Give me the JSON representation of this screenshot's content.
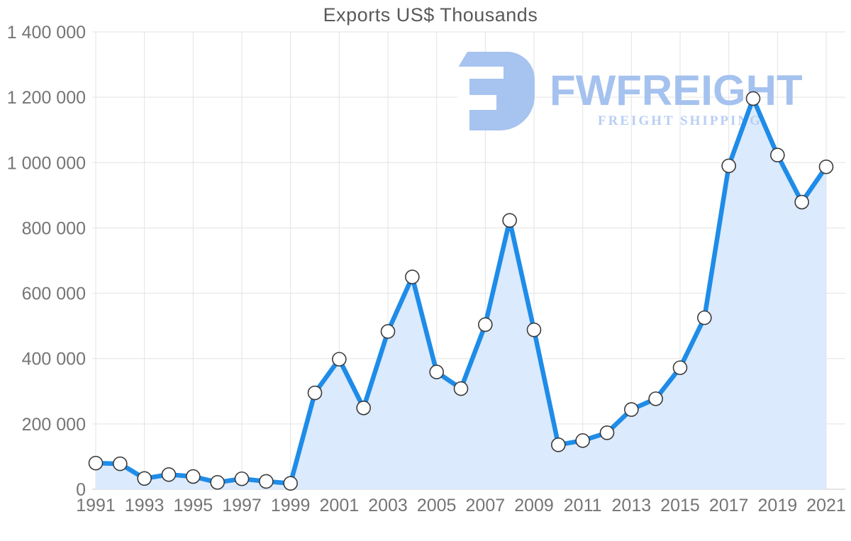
{
  "watermark": {
    "brand": "FWFREIGHT",
    "tagline": "FREIGHT SHIPPING",
    "logo_color": "#a7c3ef",
    "brand_color": "#a5c2ef",
    "tagline_color": "#b8cef4"
  },
  "chart_data": {
    "type": "area",
    "title": "Exports US$ Thousands",
    "xlabel": "",
    "ylabel": "",
    "x": [
      1991,
      1992,
      1993,
      1994,
      1995,
      1996,
      1997,
      1998,
      1999,
      2000,
      2001,
      2002,
      2003,
      2004,
      2005,
      2006,
      2007,
      2008,
      2009,
      2010,
      2011,
      2012,
      2013,
      2014,
      2015,
      2016,
      2017,
      2018,
      2019,
      2020,
      2021
    ],
    "values": [
      80000,
      78000,
      33000,
      45000,
      39000,
      21000,
      32000,
      24000,
      18000,
      295000,
      398000,
      249000,
      483000,
      650000,
      359000,
      308000,
      504000,
      823000,
      488000,
      136000,
      149000,
      173000,
      244000,
      277000,
      372000,
      525000,
      990000,
      1196000,
      1023000,
      879000,
      987000
    ],
    "series_name": "Exports US$ Thousands",
    "ylim": [
      0,
      1400000
    ],
    "ytick_step": 200000,
    "ytick_labels": [
      "0",
      "200 000",
      "400 000",
      "600 000",
      "800 000",
      "1 000 000",
      "1 200 000",
      "1 400 000"
    ],
    "xticks": [
      1991,
      1993,
      1995,
      1997,
      1999,
      2001,
      2003,
      2005,
      2007,
      2009,
      2011,
      2013,
      2015,
      2017,
      2019,
      2021
    ],
    "grid": true,
    "legend": "none",
    "marker": "circle",
    "colors": {
      "line": "#1e8ce8",
      "fill": "#dbeafc",
      "marker_fill": "#ffffff",
      "marker_stroke": "#3a3a3a",
      "grid": "#e3e3e3",
      "baseline": "#c9c9c9",
      "axis_text": "#757575",
      "title_text": "#58595b"
    }
  }
}
